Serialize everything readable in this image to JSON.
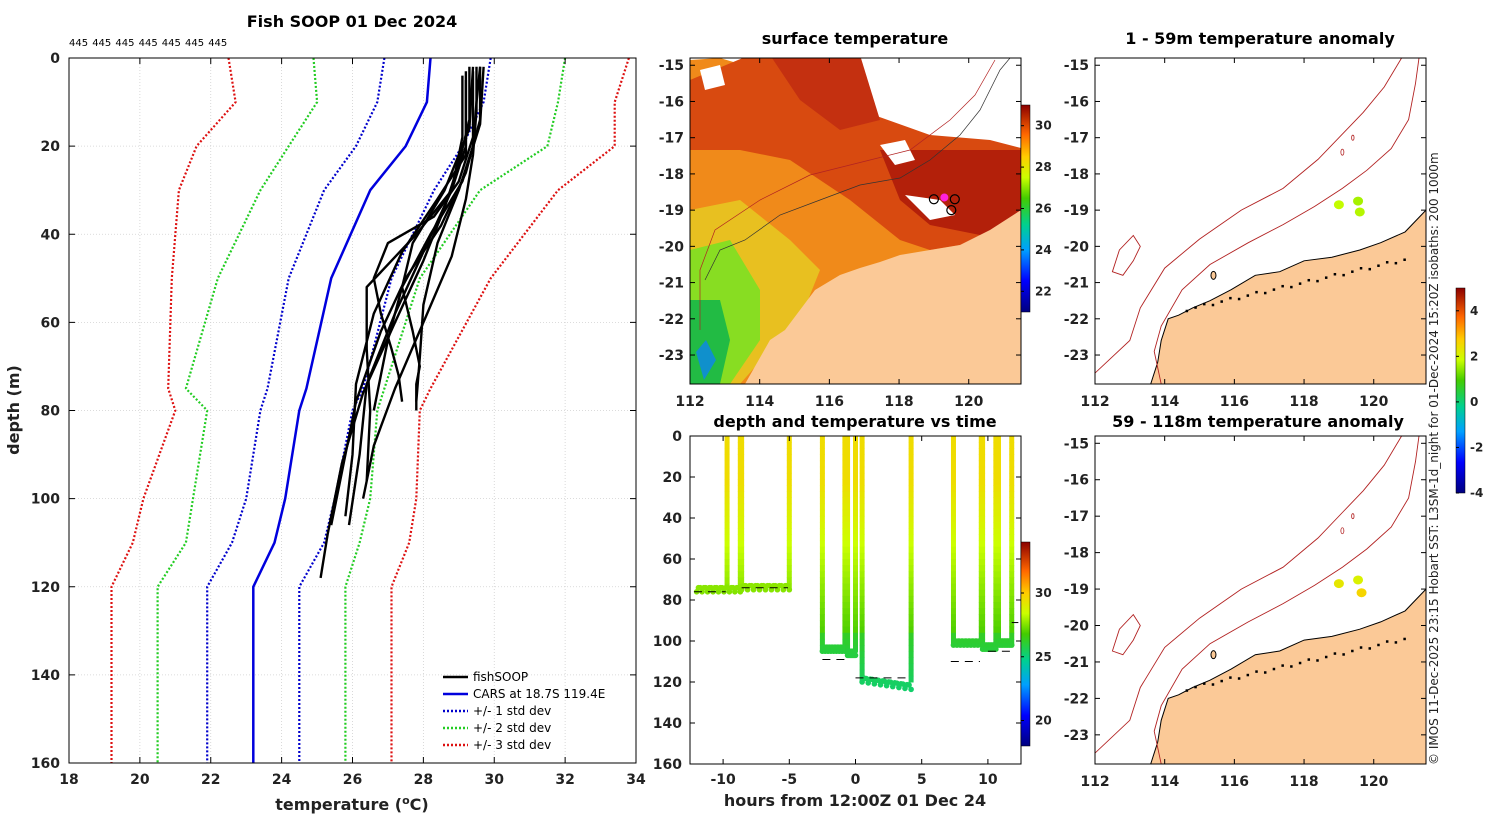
{
  "chart_data": [
    {
      "type": "line",
      "title": "Fish SOOP 01 Dec 2024",
      "xlabel": "temperature",
      "xlabel_unit_pre": "(",
      "xlabel_unit_sup": "o",
      "xlabel_unit_post": "C)",
      "ylabel": "depth (m)",
      "xlim": [
        18,
        34
      ],
      "ylim": [
        0,
        160
      ],
      "y_reversed": true,
      "xticks": [
        "18",
        "20",
        "22",
        "24",
        "26",
        "28",
        "30",
        "32",
        "34"
      ],
      "yticks": [
        "0",
        "20",
        "40",
        "60",
        "80",
        "100",
        "120",
        "140",
        "160"
      ],
      "top_labels": [
        "445",
        "445",
        "445",
        "445",
        "445",
        "445",
        "445"
      ],
      "legend": [
        "fishSOOP",
        "CARS at 18.7S 119.4E",
        "+/- 1 std dev",
        "+/- 2 std dev",
        "+/- 3 std dev"
      ],
      "depth": [
        0,
        10,
        20,
        30,
        50,
        75,
        80,
        100,
        110,
        120,
        160
      ],
      "cars_mean": [
        28.2,
        28.1,
        27.5,
        26.5,
        25.4,
        24.7,
        24.5,
        24.1,
        23.8,
        23.2,
        23.2
      ],
      "std1_low": [
        26.9,
        26.7,
        26.1,
        25.2,
        24.2,
        23.6,
        23.4,
        23.0,
        22.6,
        21.9,
        21.9
      ],
      "std1_high": [
        29.9,
        29.7,
        29.1,
        28.3,
        27.1,
        26.3,
        26.0,
        25.5,
        25.2,
        24.5,
        24.5
      ],
      "std2_low": [
        24.9,
        25.0,
        24.2,
        23.4,
        22.2,
        21.3,
        21.9,
        21.5,
        21.3,
        20.5,
        20.5
      ],
      "std2_high": [
        32.0,
        31.8,
        31.5,
        29.6,
        27.9,
        26.9,
        26.7,
        26.5,
        26.2,
        25.8,
        25.8
      ],
      "std3_low": [
        22.5,
        22.7,
        21.6,
        21.1,
        20.9,
        20.8,
        21.0,
        20.1,
        19.8,
        19.2,
        19.2
      ],
      "std3_high": [
        33.8,
        33.4,
        33.4,
        31.8,
        29.9,
        28.2,
        27.9,
        27.8,
        27.6,
        27.1,
        27.1
      ],
      "fish_profiles": [
        {
          "temp": [
            29.5,
            29.5,
            29.4,
            29.2,
            28.8,
            28.0,
            27.2,
            26.6,
            26.4,
            26.3
          ],
          "depth": [
            2,
            12,
            22,
            32,
            45,
            60,
            75,
            88,
            96,
            100
          ]
        },
        {
          "temp": [
            29.3,
            29.3,
            29.0,
            28.6,
            28.0,
            27.2,
            26.3,
            25.7,
            25.3,
            25.1
          ],
          "depth": [
            2,
            14,
            24,
            34,
            46,
            60,
            76,
            92,
            108,
            118
          ]
        },
        {
          "temp": [
            29.6,
            29.6,
            29.2,
            28.5,
            27.5,
            26.8,
            26.1,
            25.7,
            25.4
          ],
          "depth": [
            2,
            14,
            26,
            38,
            50,
            62,
            78,
            94,
            106
          ]
        },
        {
          "temp": [
            29.4,
            29.3,
            28.6,
            27.7,
            27.4,
            27.7,
            27.9,
            27.8,
            27.8
          ],
          "depth": [
            2,
            16,
            30,
            42,
            52,
            62,
            70,
            74,
            80
          ]
        },
        {
          "temp": [
            29.4,
            29.4,
            29.0,
            28.3,
            27.0,
            26.6,
            26.8,
            27.1,
            27.3,
            27.4
          ],
          "depth": [
            3,
            18,
            28,
            36,
            42,
            50,
            58,
            66,
            72,
            78
          ]
        },
        {
          "temp": [
            29.7,
            29.6,
            29.1,
            28.2,
            27.4,
            27.0,
            26.6
          ],
          "depth": [
            2,
            15,
            28,
            40,
            52,
            64,
            80
          ]
        },
        {
          "temp": [
            29.2,
            29.2,
            28.4,
            27.4,
            26.6,
            26.1,
            26.0,
            25.8
          ],
          "depth": [
            5,
            22,
            32,
            44,
            58,
            74,
            90,
            104
          ]
        },
        {
          "temp": [
            29.1,
            29.1,
            28.8,
            28.0,
            27.2,
            26.4,
            26.2,
            25.9
          ],
          "depth": [
            4,
            18,
            30,
            44,
            58,
            74,
            90,
            106
          ]
        },
        {
          "temp": [
            29.6,
            29.5,
            29.4,
            29.0,
            28.4,
            28.0,
            27.9,
            27.8
          ],
          "depth": [
            2,
            10,
            20,
            30,
            42,
            56,
            68,
            78
          ]
        },
        {
          "temp": [
            29.2,
            29.2,
            28.8,
            27.8,
            26.4,
            26.4,
            26.5,
            26.4
          ],
          "depth": [
            3,
            20,
            30,
            40,
            52,
            66,
            80,
            96
          ]
        }
      ]
    },
    {
      "type": "heatmap",
      "title": "surface temperature",
      "xticks": [
        "112",
        "114",
        "116",
        "118",
        "120"
      ],
      "yticks": [
        "-15",
        "-16",
        "-17",
        "-18",
        "-19",
        "-20",
        "-21",
        "-22",
        "-23"
      ],
      "xlim": [
        112,
        121.5
      ],
      "ylim": [
        -23.8,
        -14.8
      ],
      "colorbar_ticks": [
        "22",
        "24",
        "26",
        "28",
        "30"
      ],
      "colorbar_range": [
        21,
        31
      ],
      "markers": [
        [
          119.0,
          -18.7
        ],
        [
          119.6,
          -18.7
        ],
        [
          119.5,
          -19.0
        ]
      ],
      "highlight": [
        119.3,
        -18.65
      ]
    },
    {
      "type": "scatter",
      "title": "depth and temperature vs time",
      "xlabel": "hours from 12:00Z 01 Dec 24",
      "xlim": [
        -12.5,
        12.5
      ],
      "ylim": [
        0,
        160
      ],
      "xticks": [
        "-10",
        "-5",
        "0",
        "5",
        "10"
      ],
      "yticks": [
        "0",
        "20",
        "40",
        "60",
        "80",
        "100",
        "120",
        "140",
        "160"
      ],
      "colorbar_ticks": [
        "20",
        "25",
        "30"
      ],
      "colorbar_range": [
        18,
        34
      ],
      "dives": [
        {
          "t_down": -9.7,
          "t_up": -8.7,
          "bottom": 74,
          "t_start": -12.0
        },
        {
          "t_down": -8.6,
          "t_up": -5.0,
          "bottom": 73
        },
        {
          "t_down": -2.5,
          "t_up": -0.8,
          "bottom": 103
        },
        {
          "t_down": -0.6,
          "t_up": 0.0,
          "bottom": 105
        },
        {
          "t_down": 0.5,
          "t_up": 4.2,
          "bottom": 118
        },
        {
          "t_down": 7.4,
          "t_up": 9.5,
          "bottom": 100
        },
        {
          "t_down": 9.6,
          "t_up": 10.6,
          "bottom": 102
        },
        {
          "t_down": 10.8,
          "t_up": 11.8,
          "bottom": 100
        }
      ],
      "bottom_dashes": [
        [
          -12.2,
          -9.8,
          76
        ],
        [
          -8.6,
          -5.1,
          74
        ],
        [
          -2.5,
          -0.7,
          109
        ],
        [
          0,
          4.2,
          118
        ],
        [
          7.2,
          9.4,
          110
        ],
        [
          10.0,
          11.8,
          105
        ],
        [
          11.8,
          12.3,
          91
        ]
      ]
    },
    {
      "type": "heatmap",
      "title": "1 - 59m temperature anomaly",
      "xticks": [
        "112",
        "114",
        "116",
        "118",
        "120"
      ],
      "yticks": [
        "-15",
        "-16",
        "-17",
        "-18",
        "-19",
        "-20",
        "-21",
        "-22",
        "-23"
      ],
      "xlim": [
        112,
        121.5
      ],
      "ylim": [
        -23.8,
        -14.8
      ],
      "points": [
        [
          119.0,
          -18.85,
          1.8
        ],
        [
          119.55,
          -18.75,
          1.6
        ],
        [
          119.6,
          -19.05,
          1.7
        ]
      ]
    },
    {
      "type": "heatmap",
      "title": "59 - 118m temperature anomaly",
      "xticks": [
        "112",
        "114",
        "116",
        "118",
        "120"
      ],
      "yticks": [
        "-15",
        "-16",
        "-17",
        "-18",
        "-19",
        "-20",
        "-21",
        "-22",
        "-23"
      ],
      "xlim": [
        112,
        121.5
      ],
      "ylim": [
        -23.8,
        -14.8
      ],
      "points": [
        [
          119.0,
          -18.85,
          2.3
        ],
        [
          119.55,
          -18.75,
          2.1
        ],
        [
          119.65,
          -19.1,
          2.6
        ]
      ]
    }
  ],
  "anomaly_colorbar": {
    "ticks": [
      "4",
      "2",
      "0",
      "-2",
      "-4"
    ],
    "range": [
      -4,
      5
    ]
  },
  "credit": "© IMOS 11-Dec-2025 23:15 Hobart SST: L3SM-1d_night for 01-Dec-2024 15:20Z isobaths: 200  1000m",
  "colors": {
    "fish": "#000000",
    "cars": "#0000dd",
    "std1": "#0000cc",
    "std2": "#22cc22",
    "std3": "#dd1111",
    "land": "#fbc997",
    "isobath": "#b22222",
    "highlight": "#ff22dd"
  }
}
